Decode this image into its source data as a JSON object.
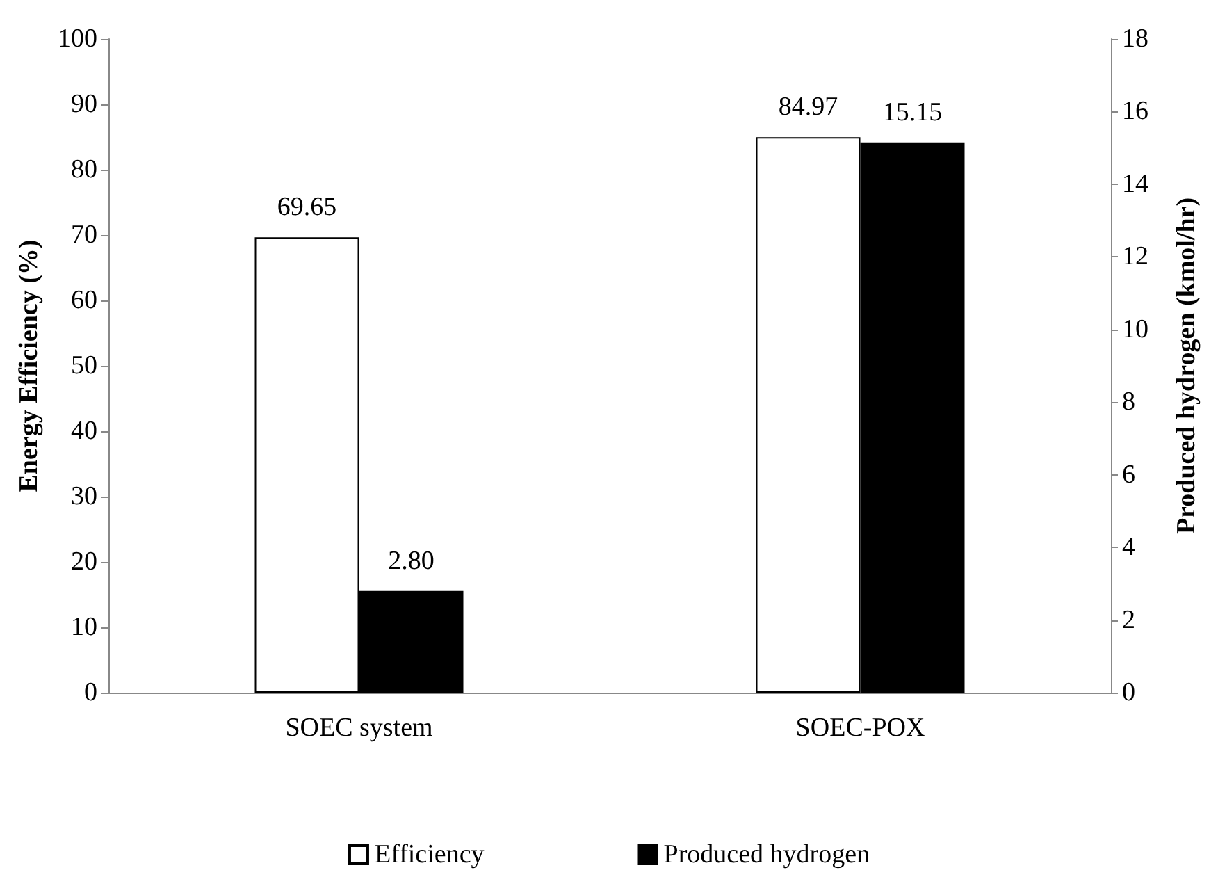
{
  "chart_data": {
    "type": "bar",
    "categories": [
      "SOEC system",
      "SOEC-POX"
    ],
    "ylabel": "Energy Efficiency (%)",
    "y2label": "Produced hydrogen (kmol/hr)",
    "ylim": [
      0,
      100
    ],
    "yticks": [
      0,
      10,
      20,
      30,
      40,
      50,
      60,
      70,
      80,
      90,
      100
    ],
    "y2lim": [
      0,
      18
    ],
    "y2ticks": [
      0,
      2,
      4,
      6,
      8,
      10,
      12,
      14,
      16,
      18
    ],
    "series": [
      {
        "name": "Efficiency",
        "color": "#ffffff",
        "values": [
          69.65,
          84.97
        ],
        "value_labels": [
          "69.65",
          "84.97"
        ]
      },
      {
        "name": "Produced hydrogen",
        "color": "#000000",
        "values": [
          2.8,
          15.15
        ],
        "value_labels": [
          "2.80",
          "15.15"
        ],
        "axis": "y2"
      }
    ],
    "grid": false,
    "legend": "bottom"
  }
}
